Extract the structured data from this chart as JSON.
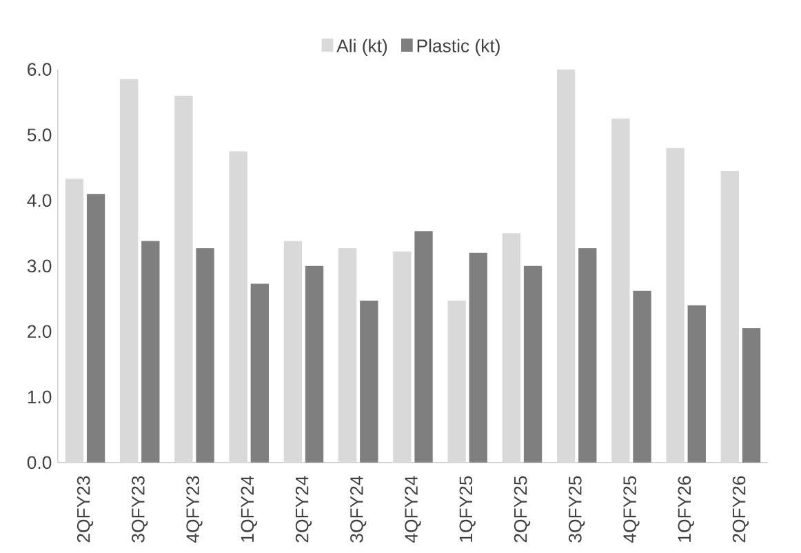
{
  "chart_data": {
    "type": "bar",
    "categories": [
      "2QFY23",
      "3QFY23",
      "4QFY23",
      "1QFY24",
      "2QFY24",
      "3QFY24",
      "4QFY24",
      "1QFY25",
      "2QFY25",
      "3QFY25",
      "4QFY25",
      "1QFY26",
      "2QFY26"
    ],
    "series": [
      {
        "name": "Ali (kt)",
        "color": "#d9d9d9",
        "values": [
          4.33,
          5.85,
          5.6,
          4.75,
          3.38,
          3.27,
          3.22,
          2.47,
          3.5,
          6.0,
          5.25,
          4.8,
          4.45
        ]
      },
      {
        "name": "Plastic (kt)",
        "color": "#7f7f7f",
        "values": [
          4.1,
          3.38,
          3.27,
          2.73,
          3.0,
          2.47,
          3.53,
          3.2,
          3.0,
          3.27,
          2.62,
          2.4,
          2.05
        ]
      }
    ],
    "ylim": [
      0,
      6
    ],
    "yticks": [
      {
        "value": 0,
        "label": "0.0"
      },
      {
        "value": 1,
        "label": "1.0"
      },
      {
        "value": 2,
        "label": "2.0"
      },
      {
        "value": 3,
        "label": "3.0"
      },
      {
        "value": 4,
        "label": "4.0"
      },
      {
        "value": 5,
        "label": "5.0"
      },
      {
        "value": 6,
        "label": "6.0"
      }
    ],
    "grid": false,
    "legend": "top"
  }
}
